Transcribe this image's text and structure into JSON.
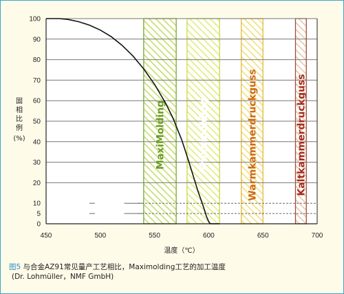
{
  "chart_data": {
    "type": "line",
    "xlabel": "温度（℃）",
    "ylabel_chars": [
      "固",
      "相",
      "比",
      "例"
    ],
    "ylabel_unit": "(%)",
    "xlim": [
      450,
      700
    ],
    "ylim": [
      0,
      100
    ],
    "xticks": [
      450,
      500,
      550,
      600,
      650,
      700
    ],
    "yticks": [
      0,
      5,
      10,
      20,
      30,
      40,
      50,
      60,
      70,
      80,
      90,
      100
    ],
    "grid": "horizontal",
    "series": [
      {
        "x": [
          450,
          462,
          470,
          480,
          490,
          500,
          510,
          520,
          530,
          540,
          550,
          560,
          567,
          575,
          580,
          585,
          590,
          595,
          598,
          600,
          601,
          602,
          610
        ],
        "y": [
          100,
          100,
          99.6,
          98.5,
          96.8,
          94.4,
          91.2,
          87.0,
          81.8,
          75.5,
          68.0,
          59.0,
          51.5,
          41.0,
          33.0,
          24.5,
          16.0,
          8.5,
          3.5,
          1.0,
          0.2,
          0,
          0
        ]
      }
    ],
    "bands": [
      {
        "label": "MaxiMolding",
        "from": 540,
        "to": 570,
        "color": "#76a832",
        "hatch": "#c6dd6a",
        "text_color": "#6a9a22"
      },
      {
        "label": "Thixomolding",
        "from": 580,
        "to": 610,
        "color": "#c9d94a",
        "hatch": "#e2ec7a",
        "text_color": "#ffffff"
      },
      {
        "label": "Warmkammerdruckguss",
        "from": 630,
        "to": 650,
        "color": "#e2b93a",
        "hatch": "#f2e07a",
        "text_color": "#d0680c"
      },
      {
        "label": "Kaltkammerdruckguss",
        "from": 680,
        "to": 690,
        "color": "#a14a36",
        "hatch": "#e9c7a8",
        "text_color": "#a52a1a"
      }
    ]
  },
  "caption": {
    "fig_label": "图5",
    "line1": " 与合金AZ91常见量产工艺相比，Maximolding工艺的加工温度",
    "line2": "(Dr. Lohmüller，NMF GmbH)"
  }
}
